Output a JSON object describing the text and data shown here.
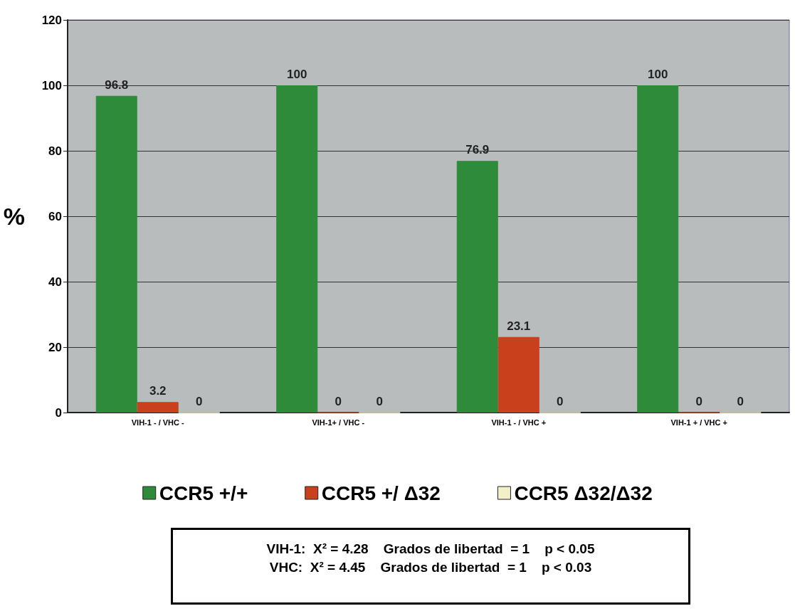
{
  "chart_data": {
    "type": "bar",
    "ylabel": "%",
    "categories": [
      "VIH-1 - / VHC -",
      "VIH-1+ / VHC -",
      "VIH-1 - / VHC +",
      "VIH-1 + / VHC +"
    ],
    "series": [
      {
        "name": "CCR5 +/+",
        "color": "#2e8b3a",
        "values": [
          96.8,
          100,
          76.9,
          100
        ]
      },
      {
        "name": "CCR5 +/ Δ32",
        "color": "#c8401c",
        "values": [
          3.2,
          0,
          23.1,
          0
        ]
      },
      {
        "name": "CCR5 Δ32/Δ32",
        "color": "#f2f0c8",
        "values": [
          0,
          0,
          0,
          0
        ]
      }
    ],
    "ylim": [
      0,
      120
    ],
    "yticks": [
      0,
      20,
      40,
      60,
      80,
      100,
      120
    ],
    "grid": "y",
    "legend": "bottom",
    "data_labels": true,
    "annotations": [
      "VIH-1:  X² = 4.28    Grados de libertad  = 1    p < 0.05",
      "VHC:  X² = 4.45    Grados de libertad  = 1    p < 0.03"
    ]
  }
}
